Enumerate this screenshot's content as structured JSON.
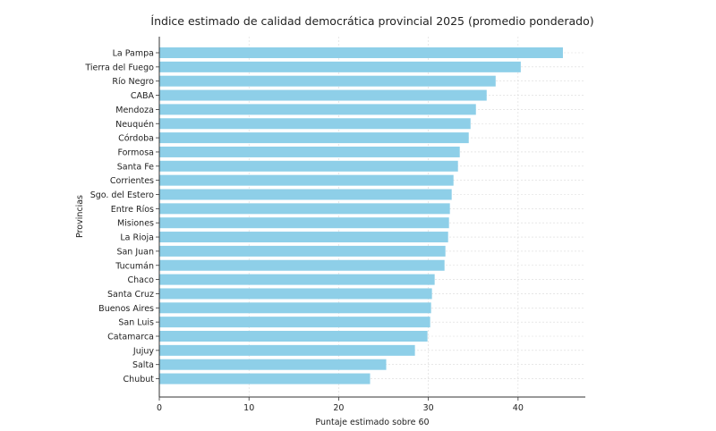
{
  "chart_data": {
    "type": "bar",
    "orientation": "horizontal",
    "title": "Índice estimado de calidad democrática provincial 2025 (promedio ponderado)",
    "xlabel": "Puntaje estimado sobre 60",
    "ylabel": "Provincias",
    "xlim": [
      0,
      47.5
    ],
    "xticks": [
      0,
      10,
      20,
      30,
      40
    ],
    "grid": true,
    "bar_color": "#8ecfe8",
    "categories": [
      "La Pampa",
      "Tierra del Fuego",
      "Río Negro",
      "CABA",
      "Mendoza",
      "Neuquén",
      "Córdoba",
      "Formosa",
      "Santa Fe",
      "Corrientes",
      "Sgo. del Estero",
      "Entre Ríos",
      "Misiones",
      "La Rioja",
      "San Juan",
      "Tucumán",
      "Chaco",
      "Santa Cruz",
      "Buenos Aires",
      "San Luis",
      "Catamarca",
      "Jujuy",
      "Salta",
      "Chubut"
    ],
    "values": [
      45.0,
      40.3,
      37.5,
      36.5,
      35.3,
      34.7,
      34.5,
      33.5,
      33.3,
      32.8,
      32.6,
      32.4,
      32.3,
      32.2,
      31.9,
      31.8,
      30.7,
      30.4,
      30.3,
      30.2,
      29.9,
      28.5,
      25.3,
      23.5
    ]
  }
}
